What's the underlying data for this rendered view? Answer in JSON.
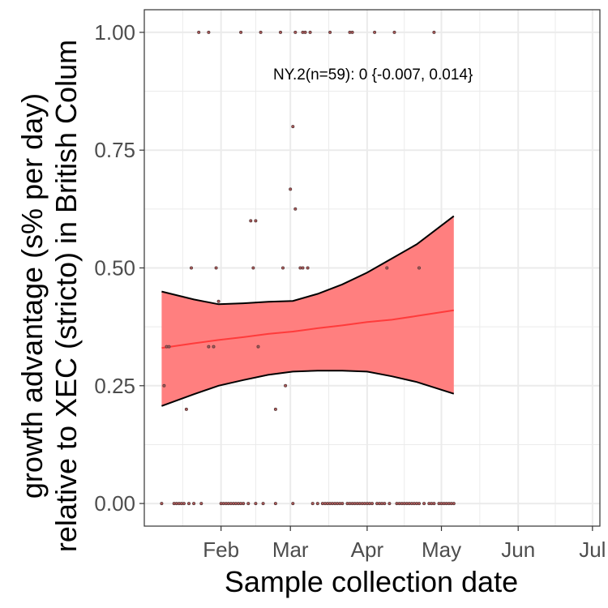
{
  "chart_data": {
    "type": "scatter",
    "xlabel": "Sample collection date",
    "ylabel_lines": [
      "growth advantage (s% per day)",
      "relative to XEC (stricto) in British Colum"
    ],
    "annotation": "NY.2(n=59): 0 {-0.007, 0.014}",
    "x_axis": {
      "ticks": [
        {
          "label": "Feb",
          "day": 31
        },
        {
          "label": "Mar",
          "day": 59
        },
        {
          "label": "Apr",
          "day": 90
        },
        {
          "label": "May",
          "day": 120
        },
        {
          "label": "Jun",
          "day": 151
        },
        {
          "label": "Jul",
          "day": 181
        }
      ],
      "range_days": [
        0,
        184
      ]
    },
    "y_axis": {
      "ticks": [
        {
          "label": "0.00",
          "value": 0.0
        },
        {
          "label": "0.25",
          "value": 0.25
        },
        {
          "label": "0.50",
          "value": 0.5
        },
        {
          "label": "0.75",
          "value": 0.75
        },
        {
          "label": "1.00",
          "value": 1.0
        }
      ],
      "ylim": [
        -0.048,
        1.048
      ]
    },
    "grid": true,
    "colors": {
      "fit_line": "#ff3b3b",
      "ribbon": "#ff7f7f",
      "ribbon_edge": "#000000",
      "points": "#5a3a3a",
      "grid": "#ebebeb",
      "panel_border": "#333333"
    },
    "points": [
      {
        "day": 22,
        "y": 1.0
      },
      {
        "day": 26,
        "y": 1.0
      },
      {
        "day": 39,
        "y": 1.0
      },
      {
        "day": 47,
        "y": 1.0
      },
      {
        "day": 55,
        "y": 1.0
      },
      {
        "day": 61,
        "y": 1.0
      },
      {
        "day": 64,
        "y": 1.0
      },
      {
        "day": 65,
        "y": 1.0
      },
      {
        "day": 67,
        "y": 1.0
      },
      {
        "day": 75,
        "y": 1.0
      },
      {
        "day": 83,
        "y": 1.0
      },
      {
        "day": 84,
        "y": 1.0
      },
      {
        "day": 93,
        "y": 1.0
      },
      {
        "day": 101,
        "y": 1.0
      },
      {
        "day": 117,
        "y": 1.0
      },
      {
        "day": 60,
        "y": 0.8
      },
      {
        "day": 59,
        "y": 0.667
      },
      {
        "day": 61,
        "y": 0.625
      },
      {
        "day": 43,
        "y": 0.6
      },
      {
        "day": 45,
        "y": 0.6
      },
      {
        "day": 19,
        "y": 0.5
      },
      {
        "day": 29,
        "y": 0.5
      },
      {
        "day": 44,
        "y": 0.5
      },
      {
        "day": 56,
        "y": 0.5
      },
      {
        "day": 63,
        "y": 0.5
      },
      {
        "day": 64,
        "y": 0.5
      },
      {
        "day": 66,
        "y": 0.5
      },
      {
        "day": 98,
        "y": 0.5
      },
      {
        "day": 111,
        "y": 0.5
      },
      {
        "day": 30,
        "y": 0.429
      },
      {
        "day": 9,
        "y": 0.333
      },
      {
        "day": 10,
        "y": 0.333
      },
      {
        "day": 26,
        "y": 0.333
      },
      {
        "day": 28,
        "y": 0.333
      },
      {
        "day": 46,
        "y": 0.333
      },
      {
        "day": 8,
        "y": 0.25
      },
      {
        "day": 57,
        "y": 0.25
      },
      {
        "day": 17,
        "y": 0.2
      },
      {
        "day": 53,
        "y": 0.2
      },
      {
        "day": 7,
        "y": 0.0
      },
      {
        "day": 12,
        "y": 0.0
      },
      {
        "day": 13,
        "y": 0.0
      },
      {
        "day": 14,
        "y": 0.0
      },
      {
        "day": 15,
        "y": 0.0
      },
      {
        "day": 16,
        "y": 0.0
      },
      {
        "day": 18,
        "y": 0.0
      },
      {
        "day": 20,
        "y": 0.0
      },
      {
        "day": 23,
        "y": 0.0
      },
      {
        "day": 31,
        "y": 0.0
      },
      {
        "day": 32,
        "y": 0.0
      },
      {
        "day": 33,
        "y": 0.0
      },
      {
        "day": 34,
        "y": 0.0
      },
      {
        "day": 35,
        "y": 0.0
      },
      {
        "day": 36,
        "y": 0.0
      },
      {
        "day": 37,
        "y": 0.0
      },
      {
        "day": 38,
        "y": 0.0
      },
      {
        "day": 39,
        "y": 0.0
      },
      {
        "day": 40,
        "y": 0.0
      },
      {
        "day": 42,
        "y": 0.0
      },
      {
        "day": 45,
        "y": 0.0
      },
      {
        "day": 48,
        "y": 0.0
      },
      {
        "day": 53,
        "y": 0.0
      },
      {
        "day": 60,
        "y": 0.0
      },
      {
        "day": 68,
        "y": 0.0
      },
      {
        "day": 70,
        "y": 0.0
      },
      {
        "day": 72,
        "y": 0.0
      },
      {
        "day": 73,
        "y": 0.0
      },
      {
        "day": 74,
        "y": 0.0
      },
      {
        "day": 75,
        "y": 0.0
      },
      {
        "day": 76,
        "y": 0.0
      },
      {
        "day": 77,
        "y": 0.0
      },
      {
        "day": 78,
        "y": 0.0
      },
      {
        "day": 79,
        "y": 0.0
      },
      {
        "day": 80,
        "y": 0.0
      },
      {
        "day": 82,
        "y": 0.0
      },
      {
        "day": 83,
        "y": 0.0
      },
      {
        "day": 84,
        "y": 0.0
      },
      {
        "day": 85,
        "y": 0.0
      },
      {
        "day": 86,
        "y": 0.0
      },
      {
        "day": 87,
        "y": 0.0
      },
      {
        "day": 88,
        "y": 0.0
      },
      {
        "day": 89,
        "y": 0.0
      },
      {
        "day": 90,
        "y": 0.0
      },
      {
        "day": 91,
        "y": 0.0
      },
      {
        "day": 92,
        "y": 0.0
      },
      {
        "day": 94,
        "y": 0.0
      },
      {
        "day": 95,
        "y": 0.0
      },
      {
        "day": 96,
        "y": 0.0
      },
      {
        "day": 97,
        "y": 0.0
      },
      {
        "day": 99,
        "y": 0.0
      },
      {
        "day": 102,
        "y": 0.0
      },
      {
        "day": 103,
        "y": 0.0
      },
      {
        "day": 104,
        "y": 0.0
      },
      {
        "day": 105,
        "y": 0.0
      },
      {
        "day": 106,
        "y": 0.0
      },
      {
        "day": 107,
        "y": 0.0
      },
      {
        "day": 108,
        "y": 0.0
      },
      {
        "day": 109,
        "y": 0.0
      },
      {
        "day": 110,
        "y": 0.0
      },
      {
        "day": 111,
        "y": 0.0
      },
      {
        "day": 113,
        "y": 0.0
      },
      {
        "day": 115,
        "y": 0.0
      },
      {
        "day": 116,
        "y": 0.0
      },
      {
        "day": 117,
        "y": 0.0
      },
      {
        "day": 119,
        "y": 0.0
      },
      {
        "day": 120,
        "y": 0.0
      },
      {
        "day": 121,
        "y": 0.0
      },
      {
        "day": 122,
        "y": 0.0
      },
      {
        "day": 123,
        "y": 0.0
      },
      {
        "day": 124,
        "y": 0.0
      },
      {
        "day": 125,
        "y": 0.0
      }
    ],
    "fit": {
      "day": [
        7,
        20,
        30,
        40,
        50,
        60,
        70,
        80,
        90,
        100,
        110,
        125
      ],
      "mean": [
        0.33,
        0.34,
        0.347,
        0.353,
        0.36,
        0.365,
        0.372,
        0.378,
        0.385,
        0.39,
        0.398,
        0.41
      ],
      "lower": [
        0.207,
        0.232,
        0.25,
        0.262,
        0.273,
        0.28,
        0.282,
        0.282,
        0.28,
        0.27,
        0.258,
        0.233
      ],
      "upper": [
        0.45,
        0.433,
        0.423,
        0.425,
        0.428,
        0.43,
        0.445,
        0.465,
        0.49,
        0.52,
        0.55,
        0.61
      ]
    }
  }
}
